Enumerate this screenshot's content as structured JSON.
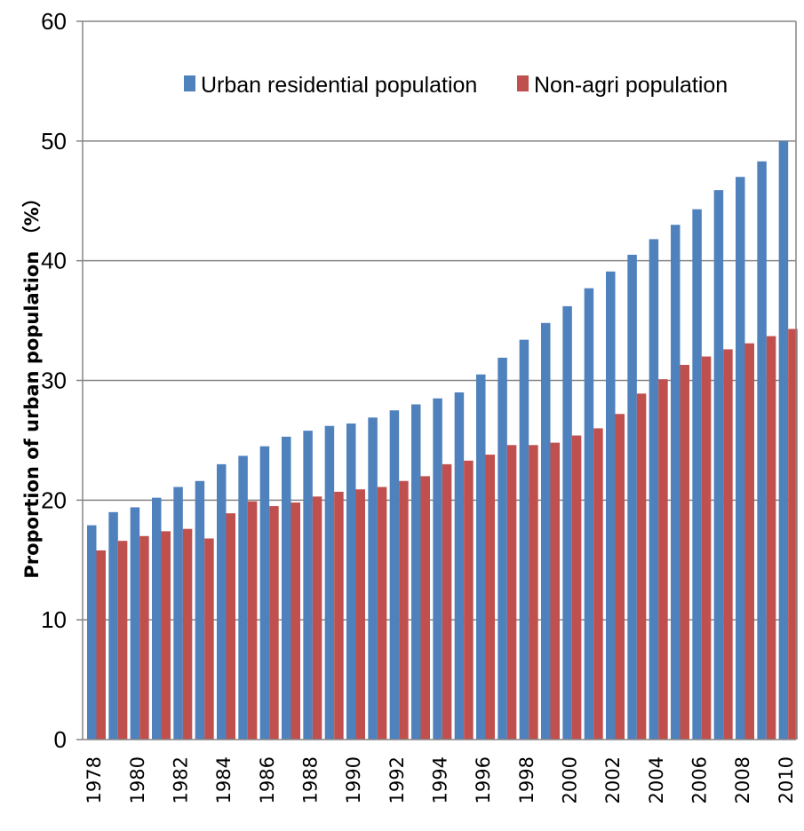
{
  "chart_data": {
    "type": "bar",
    "title": "",
    "xlabel": "",
    "ylabel": "Proportion of urban population （%）",
    "ylim": [
      0,
      60
    ],
    "yticks": [
      0,
      10,
      20,
      30,
      40,
      50,
      60
    ],
    "grid": true,
    "legend_placement": "top",
    "categories": [
      "1978",
      "1979",
      "1980",
      "1981",
      "1982",
      "1983",
      "1984",
      "1985",
      "1986",
      "1987",
      "1988",
      "1989",
      "1990",
      "1991",
      "1992",
      "1993",
      "1994",
      "1995",
      "1996",
      "1997",
      "1998",
      "1999",
      "2000",
      "2001",
      "2002",
      "2003",
      "2004",
      "2005",
      "2006",
      "2007",
      "2008",
      "2009",
      "2010"
    ],
    "category_labels": [
      "1978",
      "",
      "1980",
      "",
      "1982",
      "",
      "1984",
      "",
      "1986",
      "",
      "1988",
      "",
      "1990",
      "",
      "1992",
      "",
      "1994",
      "",
      "1996",
      "",
      "1998",
      "",
      "2000",
      "",
      "2002",
      "",
      "2004",
      "",
      "2006",
      "",
      "2008",
      "",
      "2010"
    ],
    "series": [
      {
        "name": "Urban residential population",
        "color": "#4F81BD",
        "values": [
          17.9,
          19.0,
          19.4,
          20.2,
          21.1,
          21.6,
          23.0,
          23.7,
          24.5,
          25.3,
          25.8,
          26.2,
          26.4,
          26.9,
          27.5,
          28.0,
          28.5,
          29.0,
          30.5,
          31.9,
          33.4,
          34.8,
          36.2,
          37.7,
          39.1,
          40.5,
          41.8,
          43.0,
          44.3,
          45.9,
          47.0,
          48.3,
          50.0
        ]
      },
      {
        "name": "Non-agri population",
        "color": "#C0504D",
        "values": [
          15.8,
          16.6,
          17.0,
          17.4,
          17.6,
          16.8,
          18.9,
          19.9,
          19.5,
          19.8,
          20.3,
          20.7,
          20.9,
          21.1,
          21.6,
          22.0,
          23.0,
          23.3,
          23.8,
          24.6,
          24.6,
          24.8,
          25.4,
          26.0,
          27.2,
          28.9,
          30.1,
          31.3,
          32.0,
          32.6,
          33.1,
          33.7,
          34.3
        ]
      }
    ]
  }
}
